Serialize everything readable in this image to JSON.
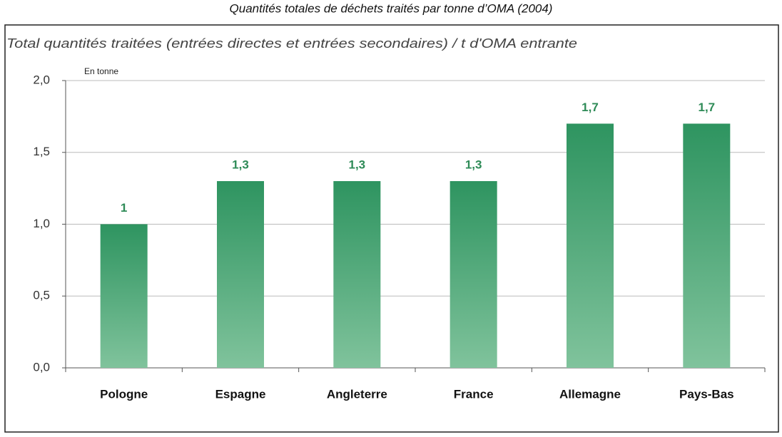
{
  "chart_data": {
    "type": "bar",
    "title": "Quantités totales de déchets traités par tonne d’OMA (2004)",
    "subtitle": "Total quantités traitées (entrées directes et entrées secondaires) / t d'OMA entrante",
    "y_unit": "En tonne",
    "categories": [
      "Pologne",
      "Espagne",
      "Angleterre",
      "France",
      "Allemagne",
      "Pays-Bas"
    ],
    "values": [
      1,
      1.3,
      1.3,
      1.3,
      1.7,
      1.7
    ],
    "value_labels": [
      "1",
      "1,3",
      "1,3",
      "1,3",
      "1,7",
      "1,7"
    ],
    "color": "#2e9460",
    "ylim": [
      0,
      2
    ],
    "yticks": [
      {
        "value": 0,
        "label": "0,0"
      },
      {
        "value": 0.5,
        "label": "0,5"
      },
      {
        "value": 1,
        "label": "1,0"
      },
      {
        "value": 1.5,
        "label": "1,5"
      },
      {
        "value": 2,
        "label": "2,0"
      }
    ],
    "grid": true
  }
}
